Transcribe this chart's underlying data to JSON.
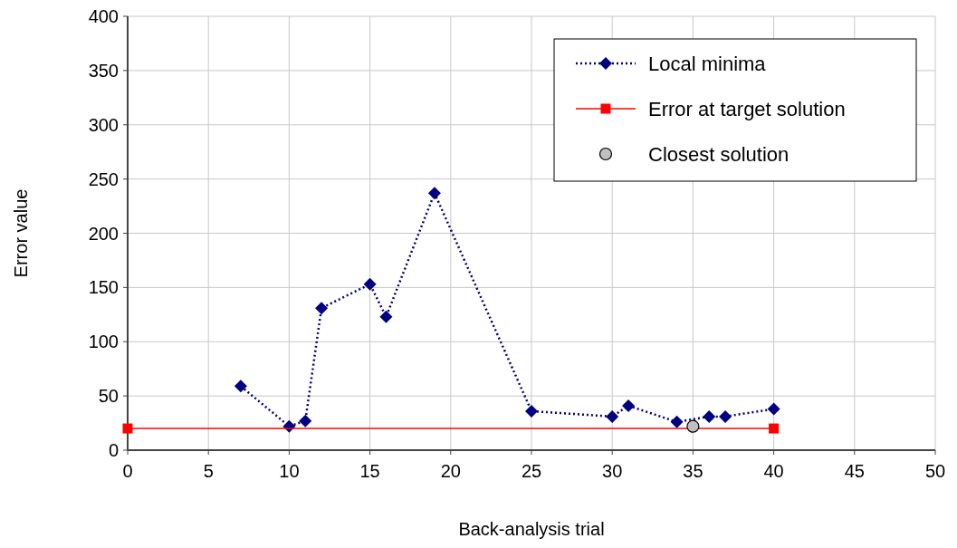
{
  "chart_data": {
    "type": "line",
    "xlabel": "Back-analysis trial",
    "ylabel": "Error value",
    "xlim": [
      0,
      50
    ],
    "ylim": [
      0,
      400
    ],
    "xticks": [
      0,
      5,
      10,
      15,
      20,
      25,
      30,
      35,
      40,
      45,
      50
    ],
    "yticks": [
      0,
      50,
      100,
      150,
      200,
      250,
      300,
      350,
      400
    ],
    "grid": true,
    "legend": "top right",
    "series": [
      {
        "name": "Local minima",
        "type": "line",
        "color": "#000080",
        "marker": "diamond",
        "line_style": "dotted",
        "x": [
          7,
          10,
          11,
          12,
          15,
          16,
          19,
          25,
          30,
          31,
          34,
          36,
          37,
          40
        ],
        "values": [
          59,
          22,
          27,
          131,
          153,
          123,
          237,
          36,
          31,
          41,
          26,
          31,
          31,
          38
        ]
      },
      {
        "name": "Error at target solution",
        "type": "line",
        "color": "#ff0000",
        "marker": "square",
        "line_style": "solid",
        "x": [
          0,
          40
        ],
        "values": [
          20,
          20
        ]
      },
      {
        "name": "Closest solution",
        "type": "scatter",
        "color": "#c0c0c0",
        "marker": "circle",
        "x": [
          35
        ],
        "values": [
          22
        ]
      }
    ]
  }
}
